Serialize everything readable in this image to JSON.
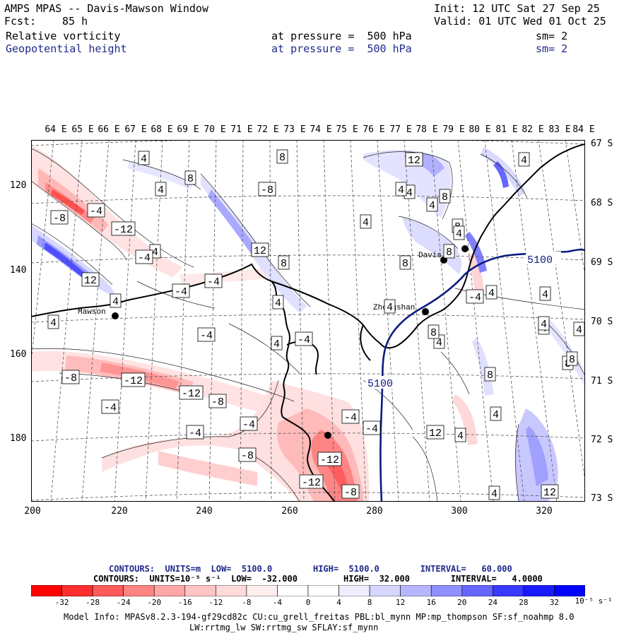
{
  "header": {
    "title": "AMPS MPAS -- Davis-Mawson Window",
    "fcst_label": "Fcst:",
    "fcst_value": "85 h",
    "init": "Init: 12 UTC Sat 27 Sep 25",
    "valid": "Valid: 01 UTC Wed 01 Oct 25",
    "field1": "Relative vorticity",
    "field1_pressure": "at pressure =  500 hPa",
    "field1_sm": "sm= 2",
    "field2": "Geopotential height",
    "field2_pressure": "at pressure =  500 hPa",
    "field2_sm": "sm= 2"
  },
  "map": {
    "lon_labels": [
      "64 E",
      "65 E",
      "66 E",
      "67 E",
      "68 E",
      "69 E",
      "70 E",
      "71 E",
      "72 E",
      "73 E",
      "74 E",
      "75 E",
      "76 E",
      "77 E",
      "78 E",
      "79 E",
      "80 E",
      "81 E",
      "82 E",
      "83 E",
      "84 E"
    ],
    "lat_labels": [
      "67 S",
      "68 S",
      "69 S",
      "70 S",
      "71 S",
      "72 S",
      "73 S"
    ],
    "x_ticks": [
      "200",
      "220",
      "240",
      "260",
      "280",
      "300",
      "320"
    ],
    "y_ticks": [
      "120",
      "140",
      "160",
      "180"
    ],
    "stations": [
      {
        "name": "Mawson"
      },
      {
        "name": "Zhongshan"
      },
      {
        "name": "Davis"
      }
    ],
    "height_labels": [
      "5100",
      "5100"
    ],
    "vorticity_labels": [
      "4",
      "8",
      "-8",
      "-4",
      "12",
      "-12",
      "4",
      "8",
      "4",
      "-4",
      "12",
      "-8",
      "4",
      "-4",
      "-4",
      "4",
      "-12",
      "-8",
      "-12",
      "-4",
      "-4",
      "-8",
      "-4",
      "-12",
      "-8",
      "-4",
      "-12",
      "-8",
      "12",
      "8",
      "4",
      "8",
      "4",
      "4",
      "4",
      "8",
      "4",
      "4",
      "8",
      "8",
      "4",
      "4",
      "8",
      "4",
      "12",
      "4",
      "4",
      "4",
      "8",
      "4",
      "12",
      "8",
      "4",
      "-4",
      "-4",
      "-4",
      "4",
      "-4",
      "4",
      "8",
      "4",
      "4"
    ],
    "colors": {
      "neg_strong": "#ff0000",
      "neg_light": "#ffe0e0",
      "pos_light": "#e0e0ff",
      "pos_strong": "#0000ff",
      "height_contour": "#0d1a80",
      "coast": "#000000"
    }
  },
  "legend": {
    "line1": "CONTOURS:  UNITS=m  LOW=  5100.0        HIGH=  5100.0        INTERVAL=   60.000",
    "line2": "CONTOURS:  UNITS=10⁻⁵ s⁻¹  LOW=  -32.000         HIGH=  32.000        INTERVAL=   4.0000",
    "colorbar_labels": [
      "-32",
      "-28",
      "-24",
      "-20",
      "-16",
      "-12",
      "-8",
      "-4",
      "0",
      "4",
      "8",
      "12",
      "16",
      "20",
      "24",
      "28",
      "32"
    ],
    "colorbar_colors": [
      "#ff0000",
      "#ff2f2f",
      "#ff5b5b",
      "#ff8484",
      "#ffa6a6",
      "#ffc4c4",
      "#ffdada",
      "#ffeeee",
      "#ffffff",
      "#ffffff",
      "#eeeeff",
      "#d6d6ff",
      "#b6b6ff",
      "#9090ff",
      "#6666ff",
      "#3838ff",
      "#0a0aff"
    ],
    "units": "10⁻⁵ s⁻¹"
  },
  "footer": {
    "line1": "Model Info: MPASv8.2.3-194-gf29cd82c CU:cu_grell_freitas PBL:bl_mynn MP:mp_thompson SF:sf_noahmp 8.0",
    "line2": "LW:rrtmg_lw SW:rrtmg_sw SFLAY:sf_mynn"
  }
}
